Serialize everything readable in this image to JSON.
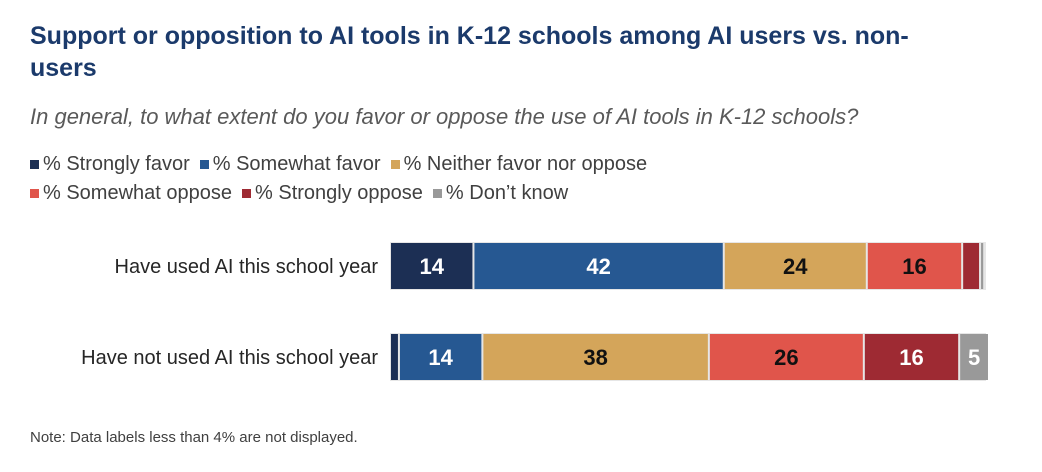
{
  "chart_data": {
    "type": "bar",
    "orientation": "horizontal",
    "stacked": true,
    "title": "Support or opposition to AI tools in K-12 schools among AI users vs. non-users",
    "subtitle": "In general, to what extent do you favor or oppose the use of AI tools in K-12 schools?",
    "categories": [
      "Have used AI this school year",
      "Have not used AI this school year"
    ],
    "legend_rows": [
      [
        0,
        1,
        2
      ],
      [
        3,
        4,
        5
      ]
    ],
    "series": [
      {
        "name": "% Strongly favor",
        "color": "#1c2f54",
        "values": [
          14,
          1.5
        ],
        "labels": [
          "14",
          ""
        ]
      },
      {
        "name": "% Somewhat favor",
        "color": "#265892",
        "values": [
          42,
          14
        ],
        "labels": [
          "42",
          "14"
        ]
      },
      {
        "name": "% Neither favor nor oppose",
        "color": "#d4a55a",
        "values": [
          24,
          38
        ],
        "labels": [
          "24",
          "38"
        ]
      },
      {
        "name": "% Somewhat oppose",
        "color": "#e0554b",
        "values": [
          16,
          26
        ],
        "labels": [
          "16",
          "26"
        ]
      },
      {
        "name": "% Strongly oppose",
        "color": "#9e2a33",
        "values": [
          3,
          16
        ],
        "labels": [
          "",
          "16"
        ]
      },
      {
        "name": "% Don’t know",
        "color": "#999999",
        "values": [
          0.7,
          5
        ],
        "labels": [
          "",
          "5"
        ]
      }
    ],
    "label_colors": [
      "#ffffff",
      "#ffffff",
      "#111111",
      "#111111",
      "#ffffff",
      "#ffffff"
    ],
    "xlim": [
      0,
      100
    ],
    "note": "Note: Data labels less than 4% are not displayed."
  }
}
